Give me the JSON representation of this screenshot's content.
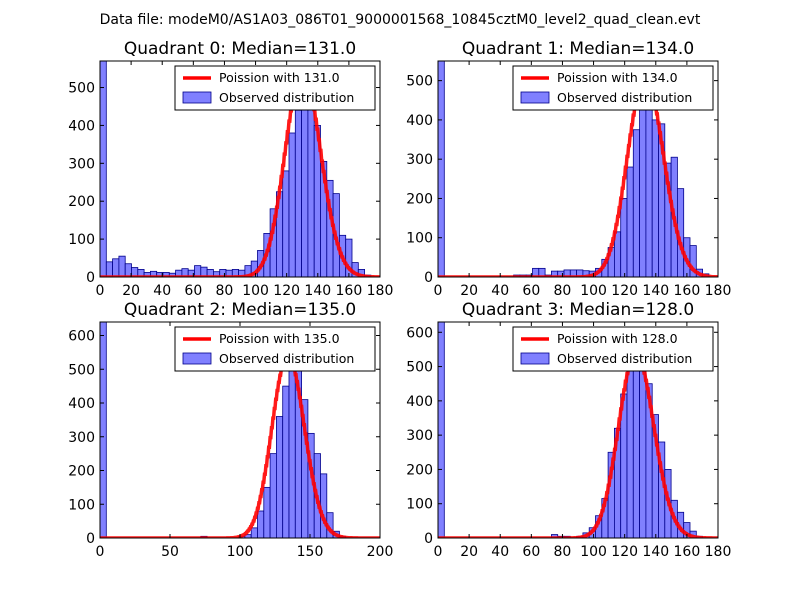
{
  "figure_title": "Data file: modeM0/AS1A03_086T01_9000001568_10845cztM0_level2_quad_clean.evt",
  "legend_labels": {
    "observed": "Observed distribution"
  },
  "colors": {
    "hist_fill": "#8080ff",
    "hist_edge": "#00008b",
    "fit_line": "#ff0000",
    "axes": "#000000"
  },
  "chart_data": [
    {
      "type": "bar",
      "title": "Quadrant 0: Median=131.0",
      "median": 131.0,
      "fit_label": "Poission with 131.0",
      "xlim": [
        0,
        180
      ],
      "ylim": [
        0,
        570
      ],
      "xticks": [
        0,
        20,
        40,
        60,
        80,
        100,
        120,
        140,
        160,
        180
      ],
      "yticks": [
        0,
        100,
        200,
        300,
        400,
        500
      ],
      "bin_width": 4.05,
      "bin_starts": [
        0.0,
        4.05,
        8.1,
        12.15,
        16.2,
        20.25,
        24.3,
        28.35,
        32.4,
        36.45,
        40.5,
        44.55,
        48.6,
        52.65,
        56.7,
        60.75,
        64.8,
        68.85,
        72.9,
        76.95,
        81.0,
        85.05,
        89.1,
        93.15,
        97.2,
        101.25,
        105.3,
        109.35,
        113.4,
        117.45,
        121.5,
        125.55,
        129.6,
        133.65,
        137.7,
        141.75,
        145.8,
        149.85,
        153.9,
        157.95,
        162.0,
        166.05,
        170.1,
        174.15
      ],
      "counts": [
        570,
        40,
        48,
        55,
        35,
        25,
        20,
        12,
        15,
        12,
        12,
        10,
        18,
        22,
        18,
        30,
        26,
        20,
        14,
        20,
        18,
        20,
        18,
        30,
        42,
        70,
        115,
        180,
        225,
        280,
        380,
        440,
        545,
        490,
        400,
        305,
        255,
        220,
        110,
        100,
        38,
        20,
        5,
        0
      ]
    },
    {
      "type": "bar",
      "title": "Quadrant 1: Median=134.0",
      "median": 134.0,
      "fit_label": "Poission with 134.0",
      "xlim": [
        0,
        180
      ],
      "ylim": [
        0,
        550
      ],
      "xticks": [
        0,
        20,
        40,
        60,
        80,
        100,
        120,
        140,
        160,
        180
      ],
      "yticks": [
        0,
        100,
        200,
        300,
        400,
        500
      ],
      "bin_width": 4.05,
      "bin_starts": [
        0.0,
        4.05,
        8.1,
        12.15,
        16.2,
        20.25,
        24.3,
        28.35,
        32.4,
        36.45,
        40.5,
        44.55,
        48.6,
        52.65,
        56.7,
        60.75,
        64.8,
        68.85,
        72.9,
        76.95,
        81.0,
        85.05,
        89.1,
        93.15,
        97.2,
        101.25,
        105.3,
        109.35,
        113.4,
        117.45,
        121.5,
        125.55,
        129.6,
        133.65,
        137.7,
        141.75,
        145.8,
        149.85,
        153.9,
        157.95,
        162.0,
        166.05,
        170.1,
        174.15
      ],
      "counts": [
        550,
        0,
        0,
        0,
        0,
        0,
        0,
        0,
        0,
        0,
        0,
        0,
        5,
        5,
        5,
        22,
        22,
        5,
        15,
        15,
        18,
        18,
        18,
        16,
        15,
        22,
        45,
        75,
        115,
        200,
        280,
        375,
        490,
        510,
        400,
        390,
        290,
        305,
        225,
        100,
        80,
        20,
        8,
        0
      ]
    },
    {
      "type": "bar",
      "title": "Quadrant 2: Median=135.0",
      "median": 135.0,
      "fit_label": "Poission with 135.0",
      "xlim": [
        0,
        200
      ],
      "ylim": [
        0,
        640
      ],
      "xticks": [
        0,
        50,
        100,
        150,
        200
      ],
      "yticks": [
        0,
        100,
        200,
        300,
        400,
        500,
        600
      ],
      "bin_width": 4.5,
      "bin_starts": [
        0.0,
        4.5,
        9.0,
        13.5,
        18.0,
        22.5,
        27.0,
        31.5,
        36.0,
        40.5,
        45.0,
        49.5,
        54.0,
        58.5,
        63.0,
        67.5,
        72.0,
        76.5,
        81.0,
        85.5,
        90.0,
        94.5,
        99.0,
        103.5,
        108.0,
        112.5,
        117.0,
        121.5,
        126.0,
        130.5,
        135.0,
        139.5,
        144.0,
        148.5,
        153.0,
        157.5,
        162.0,
        166.5,
        171.0,
        175.5,
        180.0,
        184.5,
        189.0,
        193.5
      ],
      "counts": [
        640,
        0,
        0,
        0,
        0,
        0,
        0,
        0,
        0,
        0,
        0,
        0,
        0,
        0,
        0,
        0,
        5,
        0,
        0,
        0,
        0,
        0,
        5,
        10,
        30,
        80,
        150,
        250,
        360,
        450,
        540,
        510,
        410,
        310,
        250,
        190,
        75,
        20,
        5,
        0,
        0,
        0,
        0,
        0
      ]
    },
    {
      "type": "bar",
      "title": "Quadrant 3: Median=128.0",
      "median": 128.0,
      "fit_label": "Poission with 128.0",
      "xlim": [
        0,
        180
      ],
      "ylim": [
        0,
        630
      ],
      "xticks": [
        0,
        20,
        40,
        60,
        80,
        100,
        120,
        140,
        160,
        180
      ],
      "yticks": [
        0,
        100,
        200,
        300,
        400,
        500,
        600
      ],
      "bin_width": 4.05,
      "bin_starts": [
        0.0,
        4.05,
        8.1,
        12.15,
        16.2,
        20.25,
        24.3,
        28.35,
        32.4,
        36.45,
        40.5,
        44.55,
        48.6,
        52.65,
        56.7,
        60.75,
        64.8,
        68.85,
        72.9,
        76.95,
        81.0,
        85.05,
        89.1,
        93.15,
        97.2,
        101.25,
        105.3,
        109.35,
        113.4,
        117.45,
        121.5,
        125.55,
        129.6,
        133.65,
        137.7,
        141.75,
        145.8,
        149.85,
        153.9,
        157.95,
        162.0,
        166.05,
        170.1,
        174.15
      ],
      "counts": [
        630,
        0,
        0,
        0,
        0,
        0,
        0,
        0,
        0,
        0,
        0,
        0,
        0,
        0,
        0,
        0,
        0,
        0,
        10,
        5,
        5,
        0,
        5,
        15,
        30,
        65,
        115,
        250,
        320,
        420,
        520,
        540,
        510,
        450,
        360,
        280,
        200,
        110,
        75,
        45,
        20,
        5,
        0,
        0
      ]
    }
  ]
}
